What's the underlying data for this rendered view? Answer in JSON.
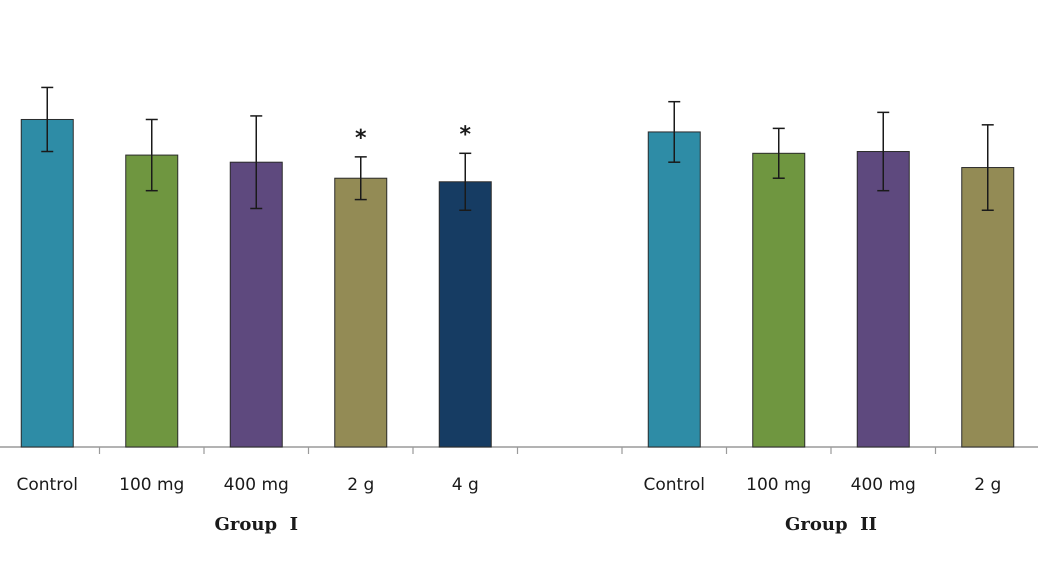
{
  "chart_data": {
    "type": "bar",
    "title": "",
    "xlabel": "",
    "ylabel": "",
    "ylim": [
      0,
      100
    ],
    "grid": false,
    "legend": "none",
    "groups": [
      {
        "name": "Group  I",
        "bars": [
          {
            "category": "Control",
            "value": 92,
            "err": 9,
            "color": "#2e8ca6",
            "sig": ""
          },
          {
            "category": "100 mg",
            "value": 82,
            "err": 10,
            "color": "#6f9640",
            "sig": ""
          },
          {
            "category": "400 mg",
            "value": 80,
            "err": 13,
            "color": "#5e497e",
            "sig": ""
          },
          {
            "category": "2 g",
            "value": 75.5,
            "err": 6,
            "color": "#938b55",
            "sig": "*"
          },
          {
            "category": "4 g",
            "value": 74.5,
            "err": 8,
            "color": "#163c63",
            "sig": "*"
          }
        ]
      },
      {
        "name": "Group  II",
        "bars": [
          {
            "category": "Control",
            "value": 88.5,
            "err": 8.5,
            "color": "#2e8ca6",
            "sig": ""
          },
          {
            "category": "100 mg",
            "value": 82.5,
            "err": 7,
            "color": "#6f9640",
            "sig": ""
          },
          {
            "category": "400 mg",
            "value": 83,
            "err": 11,
            "color": "#5e497e",
            "sig": ""
          },
          {
            "category": "2 g",
            "value": 78.5,
            "err": 12,
            "color": "#938b55",
            "sig": ""
          }
        ]
      }
    ]
  }
}
